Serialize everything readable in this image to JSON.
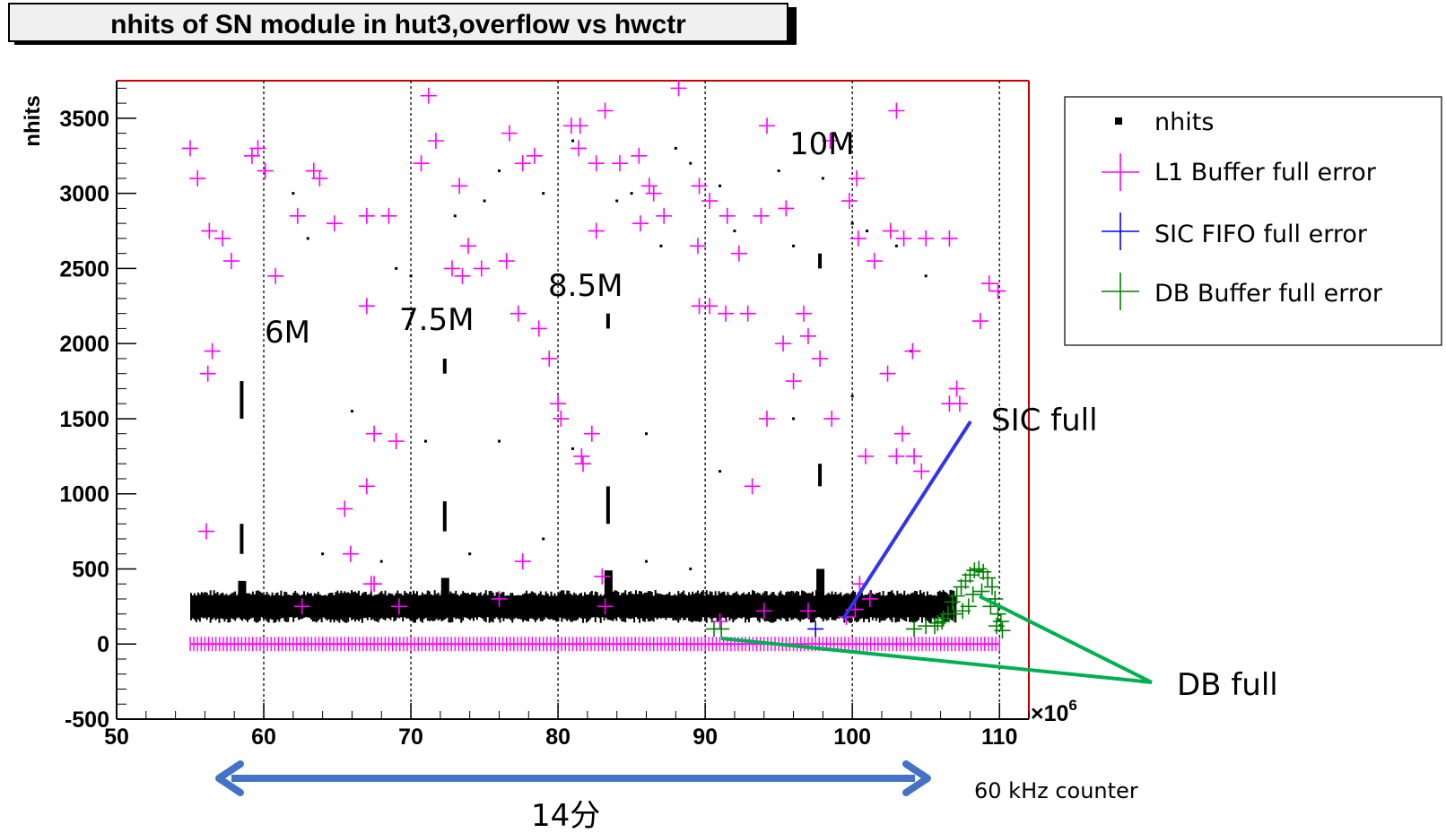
{
  "chart_data": {
    "type": "scatter",
    "title": "nhits of SN module in hut3,overflow vs hwctr",
    "ylabel": "nhits",
    "x_multiplier": "×10",
    "x_multiplier_exp": "6",
    "xlim": [
      50,
      112
    ],
    "ylim": [
      -500,
      3750
    ],
    "x_ticks": [
      50,
      60,
      70,
      80,
      90,
      100,
      110
    ],
    "y_ticks": [
      -500,
      0,
      500,
      1000,
      1500,
      2000,
      2500,
      3000,
      3500
    ],
    "grid_x": [
      60,
      70,
      80,
      90,
      100,
      110
    ],
    "legend": {
      "position": "top-right",
      "entries": [
        {
          "label": "nhits",
          "marker": "square",
          "color": "#000000"
        },
        {
          "label": "L1 Buffer full error",
          "marker": "cross",
          "color": "#ff00ff"
        },
        {
          "label": "SIC FIFO full error",
          "marker": "cross",
          "color": "#0000ff"
        },
        {
          "label": "DB Buffer full error",
          "marker": "cross",
          "color": "#008000"
        }
      ]
    },
    "series": [
      {
        "name": "nhits",
        "color": "#000000",
        "band": {
          "x_start": 55,
          "x_end": 107,
          "y_low": 180,
          "y_high": 320
        },
        "bursts": [
          {
            "x": 58.5,
            "y_peak": 420,
            "y_vertical": [
              [
                600,
                800
              ],
              [
                1500,
                1750
              ]
            ]
          },
          {
            "x": 72.3,
            "y_peak": 440,
            "y_vertical": [
              [
                750,
                950
              ],
              [
                1800,
                1900
              ]
            ]
          },
          {
            "x": 83.4,
            "y_peak": 490,
            "y_vertical": [
              [
                800,
                1050
              ],
              [
                2100,
                2200
              ]
            ]
          },
          {
            "x": 97.8,
            "y_peak": 500,
            "y_vertical": [
              [
                1050,
                1200
              ],
              [
                2500,
                2600
              ]
            ]
          }
        ],
        "scattered": [
          [
            62,
            3000
          ],
          [
            63,
            2700
          ],
          [
            69,
            2500
          ],
          [
            70,
            2450
          ],
          [
            73,
            2850
          ],
          [
            75,
            2950
          ],
          [
            76,
            3150
          ],
          [
            79,
            3000
          ],
          [
            81,
            3350
          ],
          [
            84,
            2950
          ],
          [
            85,
            3000
          ],
          [
            87,
            2650
          ],
          [
            88,
            3300
          ],
          [
            89,
            3200
          ],
          [
            91,
            3050
          ],
          [
            92,
            2750
          ],
          [
            95,
            3150
          ],
          [
            96,
            2650
          ],
          [
            98,
            3100
          ],
          [
            100,
            2800
          ],
          [
            101,
            2750
          ],
          [
            103,
            2650
          ],
          [
            105,
            2450
          ],
          [
            66,
            1550
          ],
          [
            71,
            1350
          ],
          [
            76,
            1350
          ],
          [
            81,
            1300
          ],
          [
            86,
            1400
          ],
          [
            91,
            1150
          ],
          [
            96,
            1500
          ],
          [
            100,
            1650
          ],
          [
            104,
            1950
          ],
          [
            64,
            600
          ],
          [
            68,
            550
          ],
          [
            74,
            600
          ],
          [
            79,
            700
          ],
          [
            86,
            550
          ],
          [
            89,
            500
          ]
        ]
      },
      {
        "name": "L1 Buffer full error",
        "color": "#ff00ff",
        "baseline": {
          "x_start": 55,
          "x_end": 110,
          "y": 0,
          "step": 0.25
        },
        "points": [
          [
            55,
            3300
          ],
          [
            55.5,
            3100
          ],
          [
            56.3,
            2750
          ],
          [
            57.2,
            2700
          ],
          [
            57.8,
            2550
          ],
          [
            56.2,
            1800
          ],
          [
            56.5,
            1950
          ],
          [
            56.1,
            750
          ],
          [
            59.2,
            3250
          ],
          [
            59.6,
            3300
          ],
          [
            60.1,
            3150
          ],
          [
            60.8,
            2450
          ],
          [
            63.4,
            3150
          ],
          [
            63.8,
            3100
          ],
          [
            62.3,
            2850
          ],
          [
            64.8,
            2800
          ],
          [
            67,
            2850
          ],
          [
            68.5,
            2850
          ],
          [
            67,
            2250
          ],
          [
            67,
            1050
          ],
          [
            67.5,
            1400
          ],
          [
            69,
            1350
          ],
          [
            65.5,
            900
          ],
          [
            65.9,
            600
          ],
          [
            67.3,
            400
          ],
          [
            67.5,
            400
          ],
          [
            62.6,
            250
          ],
          [
            69.2,
            250
          ],
          [
            71.2,
            3650
          ],
          [
            71.7,
            3350
          ],
          [
            70.7,
            3200
          ],
          [
            73.3,
            3050
          ],
          [
            73.9,
            2650
          ],
          [
            72.8,
            2500
          ],
          [
            73.5,
            2450
          ],
          [
            74.8,
            2500
          ],
          [
            76.7,
            3400
          ],
          [
            77.6,
            3200
          ],
          [
            78.4,
            3250
          ],
          [
            76.5,
            2550
          ],
          [
            77.3,
            2200
          ],
          [
            78.7,
            2100
          ],
          [
            79.4,
            1900
          ],
          [
            80,
            1600
          ],
          [
            80.2,
            1500
          ],
          [
            82.3,
            1400
          ],
          [
            81.6,
            1250
          ],
          [
            81.7,
            1200
          ],
          [
            80.9,
            3450
          ],
          [
            81.5,
            3450
          ],
          [
            81.4,
            3300
          ],
          [
            82.6,
            3200
          ],
          [
            84.2,
            3200
          ],
          [
            83.2,
            3550
          ],
          [
            82.6,
            2750
          ],
          [
            85.5,
            3250
          ],
          [
            86.2,
            3050
          ],
          [
            86.5,
            3000
          ],
          [
            87.2,
            2850
          ],
          [
            85.6,
            2800
          ],
          [
            89.6,
            3050
          ],
          [
            90.3,
            2950
          ],
          [
            88.2,
            3700
          ],
          [
            89.5,
            2650
          ],
          [
            91.5,
            2850
          ],
          [
            92.3,
            2600
          ],
          [
            93.8,
            2850
          ],
          [
            94.2,
            3450
          ],
          [
            95.5,
            2900
          ],
          [
            98.5,
            3350
          ],
          [
            99.8,
            2950
          ],
          [
            100.3,
            3100
          ],
          [
            100.4,
            2700
          ],
          [
            101.5,
            2550
          ],
          [
            102.6,
            2750
          ],
          [
            103.5,
            2700
          ],
          [
            103,
            3550
          ],
          [
            105,
            2700
          ],
          [
            106.6,
            2700
          ],
          [
            109.3,
            2400
          ],
          [
            109.9,
            2350
          ],
          [
            108.7,
            2150
          ],
          [
            89.6,
            2250
          ],
          [
            90.3,
            2250
          ],
          [
            91.4,
            2200
          ],
          [
            92.9,
            2200
          ],
          [
            95.3,
            2000
          ],
          [
            96,
            1750
          ],
          [
            96.7,
            2200
          ],
          [
            97.8,
            1900
          ],
          [
            97,
            2050
          ],
          [
            98.6,
            1500
          ],
          [
            102.4,
            1800
          ],
          [
            104.1,
            1950
          ],
          [
            104.2,
            1250
          ],
          [
            104.7,
            1150
          ],
          [
            106.6,
            1600
          ],
          [
            107.1,
            1700
          ],
          [
            107.3,
            1600
          ],
          [
            103.4,
            1400
          ],
          [
            100.9,
            1250
          ],
          [
            103,
            1250
          ],
          [
            93.2,
            1050
          ],
          [
            94.2,
            1500
          ],
          [
            83,
            450
          ],
          [
            77.6,
            550
          ],
          [
            76,
            300
          ],
          [
            91,
            150
          ],
          [
            94,
            220
          ],
          [
            97,
            220
          ],
          [
            100.5,
            400
          ],
          [
            101.2,
            300
          ],
          [
            99.6,
            180
          ],
          [
            83.2,
            250
          ],
          [
            100.2,
            230
          ]
        ]
      },
      {
        "name": "SIC FIFO full error",
        "color": "#0000ff",
        "points": [
          [
            97.5,
            100
          ]
        ]
      },
      {
        "name": "DB Buffer full error",
        "color": "#008000",
        "points": [
          [
            90.6,
            100
          ],
          [
            91.1,
            100
          ],
          [
            104.2,
            100
          ],
          [
            105,
            120
          ],
          [
            105.6,
            120
          ],
          [
            106.1,
            150
          ],
          [
            106.5,
            200
          ],
          [
            106.8,
            280
          ],
          [
            107.1,
            320
          ],
          [
            107.4,
            380
          ],
          [
            107.7,
            420
          ],
          [
            108,
            460
          ],
          [
            108.3,
            490
          ],
          [
            108.6,
            500
          ],
          [
            108.9,
            480
          ],
          [
            109.2,
            440
          ],
          [
            109.5,
            380
          ],
          [
            109.7,
            300
          ],
          [
            109.9,
            200
          ],
          [
            110.1,
            150
          ],
          [
            109.4,
            250
          ],
          [
            108.8,
            350
          ],
          [
            108.2,
            330
          ],
          [
            107.9,
            250
          ],
          [
            107.5,
            220
          ],
          [
            106.9,
            200
          ],
          [
            106.2,
            170
          ],
          [
            105.8,
            140
          ],
          [
            110.2,
            90
          ],
          [
            109.8,
            120
          ]
        ]
      }
    ],
    "annotations": [
      {
        "text": "6M",
        "x": 61,
        "y": 2020
      },
      {
        "text": "7.5M",
        "x": 72.5,
        "y": 2080
      },
      {
        "text": "8.5M",
        "x": 82.8,
        "y": 2320
      },
      {
        "text": "10M",
        "x": 99.3,
        "y": 3320
      },
      {
        "text": "SIC full",
        "x": 113.8,
        "y": 1480
      },
      {
        "text": "DB full",
        "x": 118.5,
        "y": -240
      },
      {
        "text": "60 kHz counter",
        "x": 114,
        "y": -910
      },
      {
        "text": "14分",
        "x": 78.5,
        "y": -1020
      }
    ]
  }
}
